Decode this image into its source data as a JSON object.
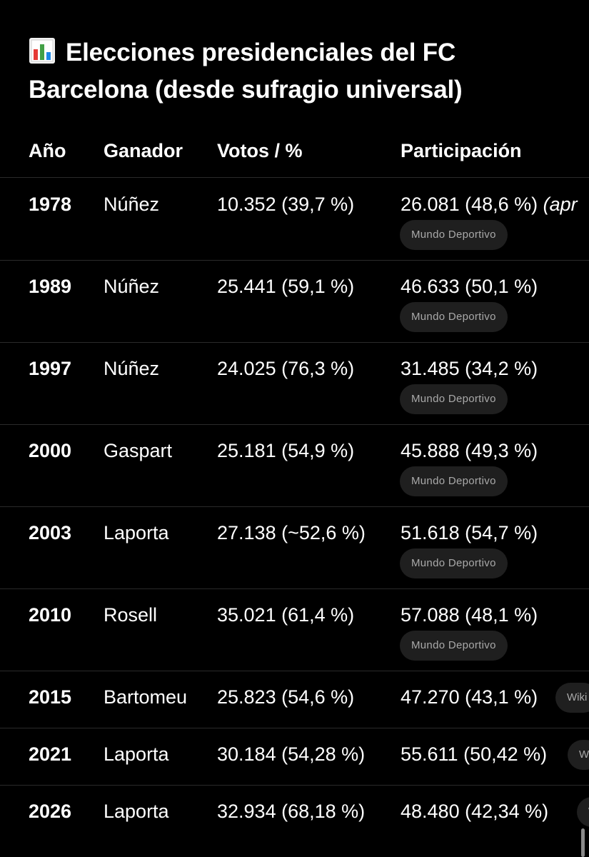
{
  "title_emoji": "📊",
  "title": "Elecciones presidenciales del FC Barcelona (desde sufragio universal)",
  "columns": {
    "year": "Año",
    "winner": "Ganador",
    "votes": "Votos / %",
    "participation": "Participación"
  },
  "rows": [
    {
      "year": "1978",
      "winner": "Núñez",
      "votes": "10.352 (39,7 %)",
      "participation": "26.081 (48,6 %)",
      "note": "(apr",
      "source": "Mundo Deportivo"
    },
    {
      "year": "1989",
      "winner": "Núñez",
      "votes": "25.441 (59,1 %)",
      "participation": "46.633 (50,1 %)",
      "source": "Mundo Deportivo"
    },
    {
      "year": "1997",
      "winner": "Núñez",
      "votes": "24.025 (76,3 %)",
      "participation": "31.485 (34,2 %)",
      "source": "Mundo Deportivo"
    },
    {
      "year": "2000",
      "winner": "Gaspart",
      "votes": "25.181 (54,9 %)",
      "participation": "45.888 (49,3 %)",
      "source": "Mundo Deportivo"
    },
    {
      "year": "2003",
      "winner": "Laporta",
      "votes": "27.138 (~52,6 %)",
      "participation": "51.618 (54,7 %)",
      "source": "Mundo Deportivo"
    },
    {
      "year": "2010",
      "winner": "Rosell",
      "votes": "35.021 (61,4 %)",
      "participation": "57.088 (48,1 %)",
      "source": "Mundo Deportivo"
    },
    {
      "year": "2015",
      "winner": "Bartomeu",
      "votes": "25.823 (54,6 %)",
      "participation": "47.270 (43,1 %)",
      "source": "Wiki"
    },
    {
      "year": "2021",
      "winner": "Laporta",
      "votes": "30.184 (54,28 %)",
      "participation": "55.611 (50,42 %)",
      "source": "W"
    },
    {
      "year": "2026",
      "winner": "Laporta",
      "votes": "32.934 (68,18 %)",
      "participation": "48.480 (42,34 %)",
      "source": "W"
    }
  ],
  "colors": {
    "background": "#000000",
    "text": "#ffffff",
    "chip_background": "#1f1f1f",
    "chip_text": "#a9a9a9",
    "divider": "#2a2a2a"
  }
}
